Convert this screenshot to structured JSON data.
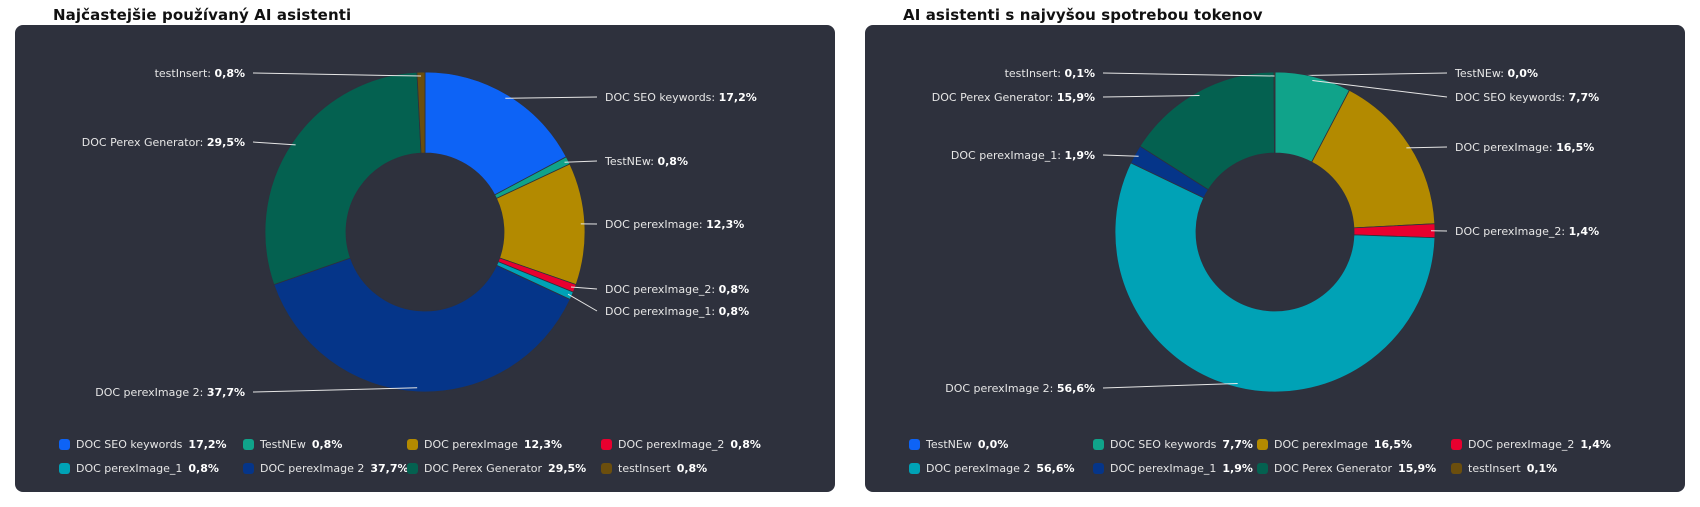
{
  "colors": {
    "card_bg": "#2e313d",
    "blue": "#0d63f6",
    "teal": "#10a38a",
    "gold": "#b38a00",
    "red": "#e8002f",
    "cyan": "#00a2b6",
    "navy": "#053589",
    "green": "#046150",
    "brown": "#6b4e0d"
  },
  "chart_data": [
    {
      "type": "pie",
      "title": "Najčastejšie používaný AI asistenti",
      "donut": true,
      "legend_position": "bottom",
      "slices": [
        {
          "name": "DOC SEO keywords",
          "value": 17.2,
          "label": "17,2%",
          "color": "#0d63f6"
        },
        {
          "name": "TestNEw",
          "value": 0.8,
          "label": "0,8%",
          "color": "#10a38a"
        },
        {
          "name": "DOC perexImage",
          "value": 12.3,
          "label": "12,3%",
          "color": "#b38a00"
        },
        {
          "name": "DOC perexImage_2",
          "value": 0.8,
          "label": "0,8%",
          "color": "#e8002f"
        },
        {
          "name": "DOC perexImage_1",
          "value": 0.8,
          "label": "0,8%",
          "color": "#00a2b6"
        },
        {
          "name": "DOC perexImage 2",
          "value": 37.7,
          "label": "37,7%",
          "color": "#053589"
        },
        {
          "name": "DOC Perex Generator",
          "value": 29.5,
          "label": "29,5%",
          "color": "#046150"
        },
        {
          "name": "testInsert",
          "value": 0.8,
          "label": "0,8%",
          "color": "#6b4e0d"
        }
      ]
    },
    {
      "type": "pie",
      "title": "AI asistenti s najvyšou spotrebou tokenov",
      "donut": true,
      "legend_position": "bottom",
      "slices": [
        {
          "name": "TestNEw",
          "value": 0.0,
          "label": "0,0%",
          "color": "#0d63f6"
        },
        {
          "name": "DOC SEO keywords",
          "value": 7.7,
          "label": "7,7%",
          "color": "#10a38a"
        },
        {
          "name": "DOC perexImage",
          "value": 16.5,
          "label": "16,5%",
          "color": "#b38a00"
        },
        {
          "name": "DOC perexImage_2",
          "value": 1.4,
          "label": "1,4%",
          "color": "#e8002f"
        },
        {
          "name": "DOC perexImage 2",
          "value": 56.6,
          "label": "56,6%",
          "color": "#00a2b6"
        },
        {
          "name": "DOC perexImage_1",
          "value": 1.9,
          "label": "1,9%",
          "color": "#053589"
        },
        {
          "name": "DOC Perex Generator",
          "value": 15.9,
          "label": "15,9%",
          "color": "#046150"
        },
        {
          "name": "testInsert",
          "value": 0.1,
          "label": "0,1%",
          "color": "#6b4e0d"
        }
      ]
    }
  ]
}
